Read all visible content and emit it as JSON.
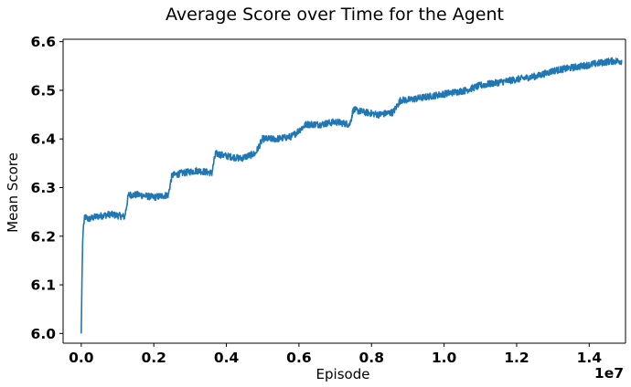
{
  "chart_data": {
    "type": "line",
    "title": "Average Score over Time for the Agent",
    "xlabel": "Episode",
    "ylabel": "Mean Score",
    "x_offset_label": "1e7",
    "x_scale": 10000000,
    "xlim": [
      -0.05,
      1.5
    ],
    "ylim": [
      5.98,
      6.605
    ],
    "xticks": [
      0.0,
      0.2,
      0.4,
      0.6,
      0.8,
      1.0,
      1.2,
      1.4
    ],
    "xtick_labels": [
      "0.0",
      "0.2",
      "0.4",
      "0.6",
      "0.8",
      "1.0",
      "1.2",
      "1.4"
    ],
    "yticks": [
      6.0,
      6.1,
      6.2,
      6.3,
      6.4,
      6.5,
      6.6
    ],
    "ytick_labels": [
      "6.0",
      "6.1",
      "6.2",
      "6.3",
      "6.4",
      "6.5",
      "6.6"
    ],
    "grid": false,
    "series": [
      {
        "color": "#1f77b4",
        "x": [
          0.0,
          0.002,
          0.004,
          0.006,
          0.01,
          0.02,
          0.04,
          0.08,
          0.12,
          0.13,
          0.16,
          0.2,
          0.24,
          0.25,
          0.28,
          0.32,
          0.36,
          0.37,
          0.4,
          0.44,
          0.48,
          0.5,
          0.54,
          0.58,
          0.62,
          0.66,
          0.7,
          0.74,
          0.75,
          0.78,
          0.82,
          0.86,
          0.88,
          0.9,
          0.94,
          0.98,
          1.02,
          1.06,
          1.1,
          1.14,
          1.18,
          1.22,
          1.26,
          1.3,
          1.34,
          1.38,
          1.42,
          1.46,
          1.49
        ],
        "y": [
          6.0,
          6.11,
          6.19,
          6.22,
          6.24,
          6.235,
          6.24,
          6.245,
          6.24,
          6.285,
          6.285,
          6.28,
          6.285,
          6.325,
          6.33,
          6.335,
          6.33,
          6.37,
          6.365,
          6.36,
          6.37,
          6.4,
          6.4,
          6.405,
          6.43,
          6.43,
          6.435,
          6.43,
          6.46,
          6.455,
          6.45,
          6.455,
          6.48,
          6.48,
          6.485,
          6.49,
          6.495,
          6.5,
          6.51,
          6.515,
          6.52,
          6.525,
          6.53,
          6.54,
          6.545,
          6.55,
          6.555,
          6.56,
          6.56
        ]
      }
    ]
  }
}
